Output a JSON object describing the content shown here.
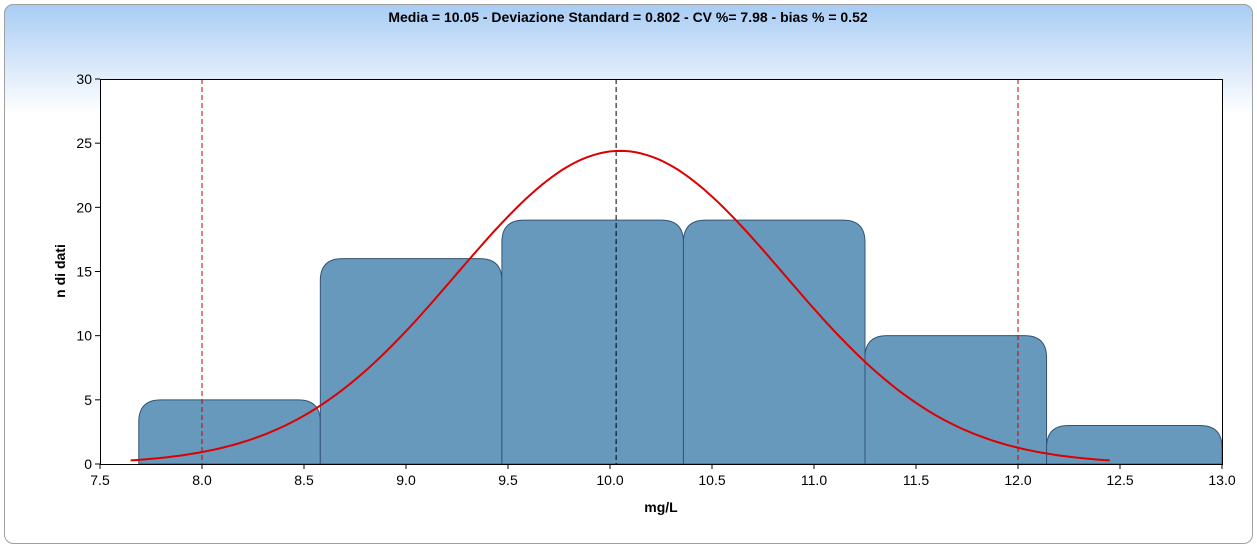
{
  "chart_data": {
    "type": "bar",
    "title": "Media = 10.05 - Deviazione Standard = 0.802 - CV %= 7.98 - bias % = 0.52",
    "xlabel": "mg/L",
    "ylabel": "n di dati",
    "xlim": [
      7.5,
      13.0
    ],
    "ylim": [
      0,
      30
    ],
    "x_ticks": [
      "7.5",
      "8.0",
      "8.5",
      "9.0",
      "9.5",
      "10.0",
      "10.5",
      "11.0",
      "11.5",
      "12.0",
      "12.5",
      "13.0"
    ],
    "y_ticks": [
      "0",
      "5",
      "10",
      "15",
      "20",
      "25",
      "30"
    ],
    "grid": false,
    "legend": "none",
    "bins": [
      {
        "start": 7.69,
        "end": 8.58,
        "count": 5
      },
      {
        "start": 8.58,
        "end": 9.47,
        "count": 16
      },
      {
        "start": 9.47,
        "end": 10.36,
        "count": 19
      },
      {
        "start": 10.36,
        "end": 11.25,
        "count": 19
      },
      {
        "start": 11.25,
        "end": 12.14,
        "count": 10
      },
      {
        "start": 12.14,
        "end": 13.0,
        "count": 3
      }
    ],
    "normal_curve": {
      "mean": 10.05,
      "std": 0.802,
      "peak": 24.4,
      "x_range": [
        7.65,
        12.45
      ],
      "color": "#dd0000"
    },
    "reference_lines": [
      {
        "x": 8.0,
        "color": "#cc0000",
        "style": "dashed"
      },
      {
        "x": 10.03,
        "color": "#000000",
        "style": "dashed"
      },
      {
        "x": 12.0,
        "color": "#cc0000",
        "style": "dashed"
      }
    ],
    "colors": {
      "bar_fill": "#6699bb",
      "bar_stroke": "#335577",
      "header_gradient_top": "#a8ccf4",
      "header_gradient_bottom": "#ffffff"
    }
  }
}
